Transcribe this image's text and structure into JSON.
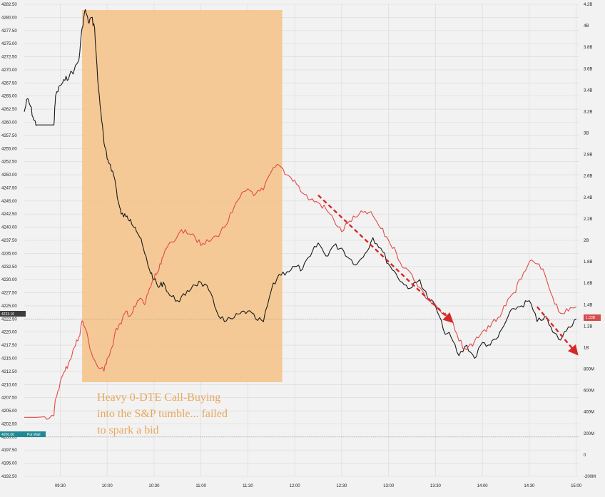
{
  "chart_data": {
    "type": "line",
    "title": "",
    "xlabel": "",
    "ylabel_left": "",
    "ylabel_right": "",
    "x_ticks": [
      "09:30",
      "10:00",
      "10:30",
      "11:00",
      "11:30",
      "12:00",
      "12:30",
      "13:00",
      "13:30",
      "14:00",
      "14:30",
      "15:00"
    ],
    "left_axis_ticks": [
      "4282.50",
      "4280.00",
      "4277.50",
      "4275.00",
      "4272.50",
      "4270.00",
      "4267.50",
      "4265.00",
      "4262.50",
      "4260.00",
      "4257.50",
      "4255.00",
      "4252.50",
      "4250.00",
      "4247.50",
      "4245.00",
      "4242.50",
      "4240.00",
      "4237.50",
      "4235.00",
      "4232.50",
      "4230.00",
      "4227.50",
      "4225.00",
      "4222.50",
      "4220.00",
      "4217.50",
      "4215.00",
      "4212.50",
      "4210.00",
      "4207.50",
      "4205.00",
      "4202.50",
      "4200.00",
      "4197.50",
      "4195.00",
      "4192.50"
    ],
    "right_axis_ticks": [
      "4.2B",
      "4B",
      "3.8B",
      "3.6B",
      "3.4B",
      "3.2B",
      "3B",
      "2.8B",
      "2.6B",
      "2.4B",
      "2.2B",
      "2B",
      "1.8B",
      "1.6B",
      "1.4B",
      "1.2B",
      "1B",
      "800M",
      "600M",
      "400M",
      "200M",
      "0",
      "-200M"
    ],
    "ylim_left": [
      4192.5,
      4282.5
    ],
    "ylim_right": [
      -200,
      4200
    ],
    "right_axis_unit": "M",
    "series": [
      {
        "name": "",
        "axis": "left",
        "color": "#1a1a1a",
        "points": [
          [
            "09:07",
            4262.0
          ],
          [
            "09:09",
            4264.5
          ],
          [
            "09:11",
            4263.0
          ],
          [
            "09:13",
            4260.5
          ],
          [
            "09:15",
            4259.5
          ],
          [
            "09:17",
            4259.5
          ],
          [
            "09:20",
            4259.5
          ],
          [
            "09:24",
            4259.5
          ],
          [
            "09:26",
            4259.5
          ],
          [
            "09:27",
            4265.0
          ],
          [
            "09:30",
            4267.0
          ],
          [
            "09:33",
            4268.0
          ],
          [
            "09:36",
            4269.0
          ],
          [
            "09:39",
            4270.0
          ],
          [
            "09:42",
            4272.0
          ],
          [
            "09:44",
            4278.0
          ],
          [
            "09:46",
            4281.5
          ],
          [
            "09:48",
            4279.0
          ],
          [
            "09:50",
            4280.0
          ],
          [
            "09:52",
            4278.0
          ],
          [
            "09:54",
            4268.0
          ],
          [
            "09:56",
            4262.0
          ],
          [
            "09:58",
            4256.0
          ],
          [
            "10:00",
            4253.0
          ],
          [
            "10:02",
            4252.0
          ],
          [
            "10:05",
            4249.0
          ],
          [
            "10:07",
            4245.0
          ],
          [
            "10:09",
            4242.5
          ],
          [
            "10:12",
            4242.0
          ],
          [
            "10:15",
            4241.5
          ],
          [
            "10:18",
            4240.0
          ],
          [
            "10:21",
            4238.0
          ],
          [
            "10:24",
            4235.0
          ],
          [
            "10:27",
            4232.0
          ],
          [
            "10:30",
            4230.0
          ],
          [
            "10:33",
            4228.5
          ],
          [
            "10:36",
            4229.5
          ],
          [
            "10:40",
            4227.0
          ],
          [
            "10:45",
            4226.0
          ],
          [
            "10:50",
            4227.0
          ],
          [
            "10:55",
            4229.0
          ],
          [
            "11:00",
            4229.5
          ],
          [
            "11:05",
            4228.0
          ],
          [
            "11:10",
            4224.0
          ],
          [
            "11:15",
            4222.0
          ],
          [
            "11:20",
            4222.5
          ],
          [
            "11:25",
            4223.5
          ],
          [
            "11:30",
            4224.0
          ],
          [
            "11:35",
            4222.5
          ],
          [
            "11:40",
            4222.0
          ],
          [
            "11:45",
            4228.0
          ],
          [
            "11:50",
            4231.0
          ],
          [
            "11:55",
            4231.5
          ],
          [
            "12:00",
            4232.5
          ],
          [
            "12:05",
            4232.0
          ],
          [
            "12:10",
            4234.5
          ],
          [
            "12:15",
            4237.0
          ],
          [
            "12:20",
            4234.5
          ],
          [
            "12:25",
            4236.5
          ],
          [
            "12:30",
            4236.0
          ],
          [
            "12:35",
            4234.0
          ],
          [
            "12:40",
            4233.0
          ],
          [
            "12:45",
            4235.0
          ],
          [
            "12:50",
            4238.0
          ],
          [
            "12:55",
            4236.0
          ],
          [
            "13:00",
            4233.0
          ],
          [
            "13:05",
            4231.0
          ],
          [
            "13:10",
            4229.0
          ],
          [
            "13:15",
            4228.5
          ],
          [
            "13:20",
            4230.0
          ],
          [
            "13:25",
            4226.5
          ],
          [
            "13:30",
            4225.0
          ],
          [
            "13:35",
            4220.5
          ],
          [
            "13:40",
            4219.0
          ],
          [
            "13:45",
            4215.5
          ],
          [
            "13:50",
            4217.5
          ],
          [
            "13:55",
            4215.0
          ],
          [
            "14:00",
            4218.0
          ],
          [
            "14:05",
            4217.5
          ],
          [
            "14:10",
            4219.0
          ],
          [
            "14:15",
            4222.0
          ],
          [
            "14:20",
            4224.5
          ],
          [
            "14:25",
            4225.0
          ],
          [
            "14:30",
            4226.0
          ],
          [
            "14:35",
            4222.0
          ],
          [
            "14:40",
            4223.0
          ],
          [
            "14:45",
            4220.0
          ],
          [
            "14:50",
            4218.5
          ],
          [
            "14:55",
            4221.0
          ],
          [
            "15:00",
            4222.5
          ]
        ]
      },
      {
        "name": "",
        "axis": "right",
        "color": "#e24a4a",
        "points": [
          [
            "09:07",
            350
          ],
          [
            "09:15",
            350
          ],
          [
            "09:20",
            355
          ],
          [
            "09:26",
            365
          ],
          [
            "09:27",
            520
          ],
          [
            "09:30",
            680
          ],
          [
            "09:33",
            780
          ],
          [
            "09:36",
            880
          ],
          [
            "09:39",
            1000
          ],
          [
            "09:42",
            1100
          ],
          [
            "09:44",
            1250
          ],
          [
            "09:46",
            1180
          ],
          [
            "09:50",
            950
          ],
          [
            "09:54",
            820
          ],
          [
            "09:58",
            780
          ],
          [
            "10:00",
            900
          ],
          [
            "10:03",
            1000
          ],
          [
            "10:06",
            1180
          ],
          [
            "10:09",
            1220
          ],
          [
            "10:12",
            1340
          ],
          [
            "10:15",
            1300
          ],
          [
            "10:18",
            1380
          ],
          [
            "10:21",
            1460
          ],
          [
            "10:24",
            1400
          ],
          [
            "10:27",
            1550
          ],
          [
            "10:30",
            1640
          ],
          [
            "10:33",
            1720
          ],
          [
            "10:36",
            1850
          ],
          [
            "10:40",
            1980
          ],
          [
            "10:45",
            2040
          ],
          [
            "10:50",
            2100
          ],
          [
            "10:55",
            2060
          ],
          [
            "11:00",
            1950
          ],
          [
            "11:05",
            1990
          ],
          [
            "11:10",
            2040
          ],
          [
            "11:15",
            2120
          ],
          [
            "11:20",
            2260
          ],
          [
            "11:25",
            2400
          ],
          [
            "11:30",
            2480
          ],
          [
            "11:35",
            2430
          ],
          [
            "11:40",
            2470
          ],
          [
            "11:45",
            2640
          ],
          [
            "11:50",
            2700
          ],
          [
            "11:55",
            2610
          ],
          [
            "12:00",
            2560
          ],
          [
            "12:05",
            2440
          ],
          [
            "12:10",
            2380
          ],
          [
            "12:15",
            2350
          ],
          [
            "12:20",
            2290
          ],
          [
            "12:25",
            2190
          ],
          [
            "12:30",
            2080
          ],
          [
            "12:35",
            2180
          ],
          [
            "12:40",
            2220
          ],
          [
            "12:45",
            2270
          ],
          [
            "12:50",
            2230
          ],
          [
            "12:55",
            2110
          ],
          [
            "13:00",
            2000
          ],
          [
            "13:05",
            1880
          ],
          [
            "13:10",
            1740
          ],
          [
            "13:15",
            1680
          ],
          [
            "13:20",
            1560
          ],
          [
            "13:25",
            1450
          ],
          [
            "13:30",
            1400
          ],
          [
            "13:35",
            1310
          ],
          [
            "13:40",
            1260
          ],
          [
            "13:45",
            1060
          ],
          [
            "13:50",
            980
          ],
          [
            "13:55",
            1060
          ],
          [
            "14:00",
            1150
          ],
          [
            "14:05",
            1190
          ],
          [
            "14:10",
            1280
          ],
          [
            "14:15",
            1390
          ],
          [
            "14:20",
            1510
          ],
          [
            "14:25",
            1640
          ],
          [
            "14:30",
            1800
          ],
          [
            "14:35",
            1780
          ],
          [
            "14:40",
            1680
          ],
          [
            "14:45",
            1470
          ],
          [
            "14:50",
            1320
          ],
          [
            "14:55",
            1340
          ],
          [
            "15:00",
            1380
          ]
        ]
      }
    ],
    "highlight_region": {
      "x_start": "09:44",
      "x_end": "11:52",
      "color": "#f5c48c"
    },
    "annotation": "Heavy 0-DTE Call-Buying into the S&P tumble... failed to spark a bid",
    "annotation_lines": [
      "Heavy 0-DTE Call-Buying",
      "into the S&P tumble... failed",
      "to spark a bid"
    ],
    "left_badge": "4223.16",
    "left_badge_2": "4200.00",
    "left_badge_2_label": "Put Wall",
    "right_badge": "1.33B",
    "reference_lines": [
      {
        "axis": "left",
        "value": 4222.5
      },
      {
        "axis": "left",
        "value": 4200.0
      }
    ],
    "trend_arrows": [
      {
        "from": [
          "12:15",
          2420
        ],
        "to": [
          "13:40",
          1250
        ],
        "color": "#d62828"
      },
      {
        "from": [
          "14:35",
          1380
        ],
        "to": [
          "15:00",
          950
        ],
        "color": "#d62828"
      }
    ],
    "grid": true
  },
  "colors": {
    "background": "#f2f2f2",
    "grid": "#d9d9d9",
    "spx_line": "#1a1a1a",
    "flow_line": "#e24a4a",
    "highlight": "#f5c48c",
    "annotation_text": "#e8a65c",
    "arrow": "#d62828",
    "badge_dark": "#3d3d3d",
    "badge_teal": "#1f8a96",
    "badge_red": "#d64b4b"
  }
}
